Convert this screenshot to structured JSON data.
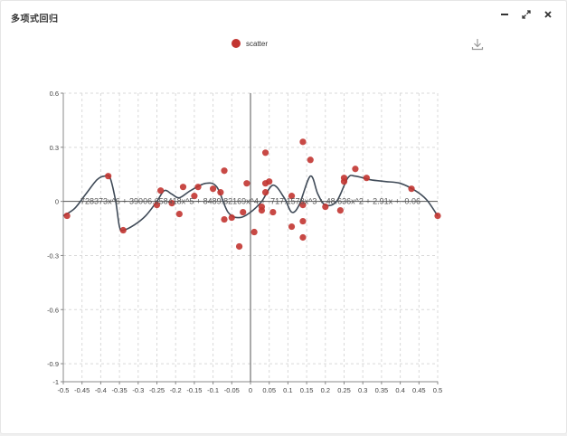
{
  "window": {
    "title": "多项式回归",
    "controls": [
      {
        "name": "minimize-button",
        "icon": "minus-icon"
      },
      {
        "name": "maximize-button",
        "icon": "expand-icon"
      },
      {
        "name": "close-button",
        "icon": "close-icon"
      }
    ]
  },
  "toolbar": {
    "download_icon": "download-icon"
  },
  "chart_data": {
    "type": "scatter",
    "legend": [
      {
        "name": "scatter",
        "color": "#c23531"
      }
    ],
    "legend_position": "top-center",
    "series": [
      {
        "name": "scatter",
        "color": "#c23531",
        "points": [
          [
            -0.49,
            -0.08
          ],
          [
            -0.38,
            0.14
          ],
          [
            -0.34,
            -0.16
          ],
          [
            -0.25,
            -0.02
          ],
          [
            -0.24,
            0.06
          ],
          [
            -0.21,
            -0.01
          ],
          [
            -0.19,
            -0.07
          ],
          [
            -0.18,
            0.08
          ],
          [
            -0.15,
            0.03
          ],
          [
            -0.14,
            0.08
          ],
          [
            -0.1,
            0.07
          ],
          [
            -0.08,
            0.05
          ],
          [
            -0.07,
            0.17
          ],
          [
            -0.07,
            -0.1
          ],
          [
            -0.05,
            -0.09
          ],
          [
            -0.03,
            -0.25
          ],
          [
            -0.02,
            -0.06
          ],
          [
            -0.01,
            0.1
          ],
          [
            0.01,
            -0.17
          ],
          [
            0.03,
            -0.05
          ],
          [
            0.03,
            -0.03
          ],
          [
            0.04,
            0.1
          ],
          [
            0.04,
            0.27
          ],
          [
            0.04,
            0.05
          ],
          [
            0.05,
            0.11
          ],
          [
            0.06,
            -0.06
          ],
          [
            0.11,
            -0.14
          ],
          [
            0.11,
            0.03
          ],
          [
            0.14,
            0.33
          ],
          [
            0.14,
            -0.02
          ],
          [
            0.14,
            -0.11
          ],
          [
            0.14,
            -0.2
          ],
          [
            0.16,
            0.23
          ],
          [
            0.2,
            -0.03
          ],
          [
            0.24,
            -0.05
          ],
          [
            0.25,
            0.11
          ],
          [
            0.25,
            0.13
          ],
          [
            0.28,
            0.18
          ],
          [
            0.31,
            0.13
          ],
          [
            0.43,
            0.07
          ],
          [
            0.5,
            -0.08
          ]
        ]
      },
      {
        "type": "line",
        "color": "#3f4a57",
        "label": "728373x^6 + 39006.658418x^5 + 8489.82169x^4 + -717.1578x^3 + 48.636x^2 + 2.91x + -0.06",
        "points": [
          [
            -0.5,
            -0.08
          ],
          [
            -0.47,
            -0.04
          ],
          [
            -0.44,
            0.04
          ],
          [
            -0.41,
            0.12
          ],
          [
            -0.39,
            0.14
          ],
          [
            -0.375,
            0.13
          ],
          [
            -0.36,
            0.0
          ],
          [
            -0.35,
            -0.14
          ],
          [
            -0.34,
            -0.16
          ],
          [
            -0.31,
            -0.13
          ],
          [
            -0.28,
            -0.08
          ],
          [
            -0.25,
            0.0
          ],
          [
            -0.23,
            0.06
          ],
          [
            -0.21,
            0.04
          ],
          [
            -0.19,
            0.02
          ],
          [
            -0.16,
            0.06
          ],
          [
            -0.12,
            0.1
          ],
          [
            -0.09,
            0.08
          ],
          [
            -0.06,
            -0.06
          ],
          [
            -0.03,
            -0.09
          ],
          [
            0.0,
            -0.06
          ],
          [
            0.03,
            0.0
          ],
          [
            0.06,
            0.09
          ],
          [
            0.09,
            0.02
          ],
          [
            0.11,
            -0.06
          ],
          [
            0.13,
            -0.02
          ],
          [
            0.16,
            0.14
          ],
          [
            0.18,
            0.04
          ],
          [
            0.2,
            -0.02
          ],
          [
            0.23,
            0.0
          ],
          [
            0.26,
            0.13
          ],
          [
            0.28,
            0.14
          ],
          [
            0.32,
            0.12
          ],
          [
            0.36,
            0.11
          ],
          [
            0.4,
            0.1
          ],
          [
            0.44,
            0.06
          ],
          [
            0.47,
            0.01
          ],
          [
            0.5,
            -0.08
          ]
        ]
      }
    ],
    "x_axis": {
      "min": -0.5,
      "max": 0.5,
      "ticks": [
        "-0.5",
        "-0.45",
        "-0.4",
        "-0.35",
        "-0.3",
        "-0.25",
        "-0.2",
        "-0.15",
        "-0.1",
        "-0.05",
        "0",
        "0.05",
        "0.1",
        "0.15",
        "0.2",
        "0.25",
        "0.3",
        "0.35",
        "0.4",
        "0.45",
        "0.5"
      ]
    },
    "y_axis": {
      "min": -1,
      "max": 0.6,
      "ticks": [
        {
          "value": 0.6,
          "label": "0.6"
        },
        {
          "value": 0.3,
          "label": "0.3"
        },
        {
          "value": 0,
          "label": "0"
        },
        {
          "value": -0.3,
          "label": "-0.3"
        },
        {
          "value": -0.6,
          "label": "-0.6"
        },
        {
          "value": -0.9,
          "label": "-0.9"
        },
        {
          "value": -1,
          "label": "-1"
        }
      ]
    },
    "grid": true
  }
}
